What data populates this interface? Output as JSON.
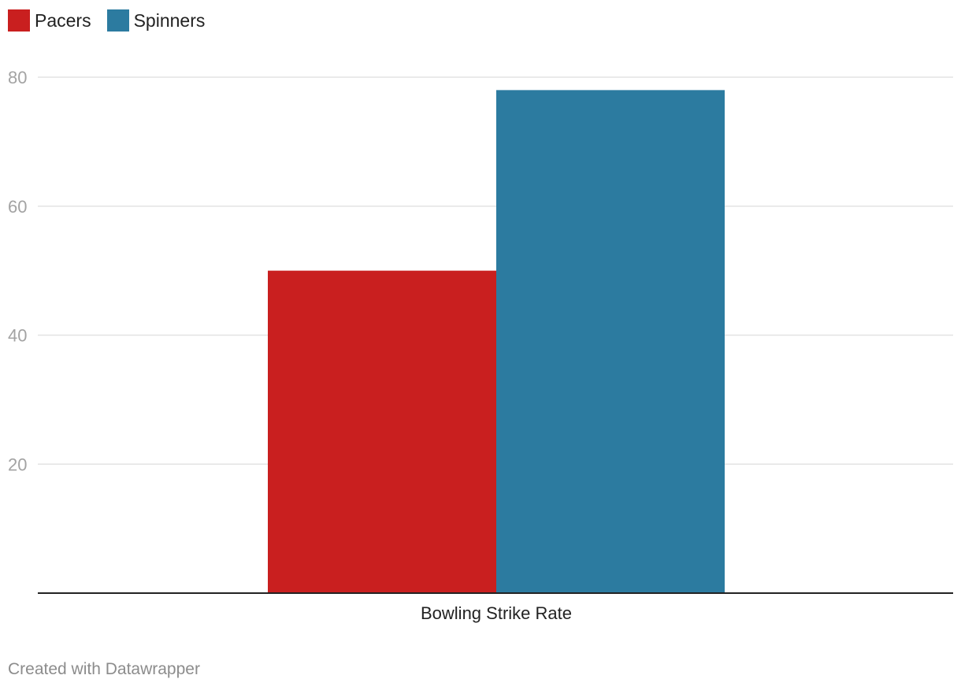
{
  "colors": {
    "pacers": "#c91f1f",
    "spinners": "#2c7ba0",
    "grid": "#e3e3e3",
    "axis": "#222222",
    "tick_text": "#a3a3a3"
  },
  "legend": {
    "items": [
      {
        "label": "Pacers",
        "color": "#c91f1f"
      },
      {
        "label": "Spinners",
        "color": "#2c7ba0"
      }
    ],
    "placement": "top-left"
  },
  "chart_data": {
    "type": "bar",
    "categories": [
      "Bowling Strike Rate"
    ],
    "series": [
      {
        "name": "Pacers",
        "values": [
          50
        ],
        "color": "#c91f1f"
      },
      {
        "name": "Spinners",
        "values": [
          78
        ],
        "color": "#2c7ba0"
      }
    ],
    "ylim": [
      0,
      80
    ],
    "yticks": [
      20,
      40,
      60,
      80
    ],
    "grid": true,
    "legend": "top-left"
  },
  "footer": {
    "credit": "Created with Datawrapper"
  }
}
